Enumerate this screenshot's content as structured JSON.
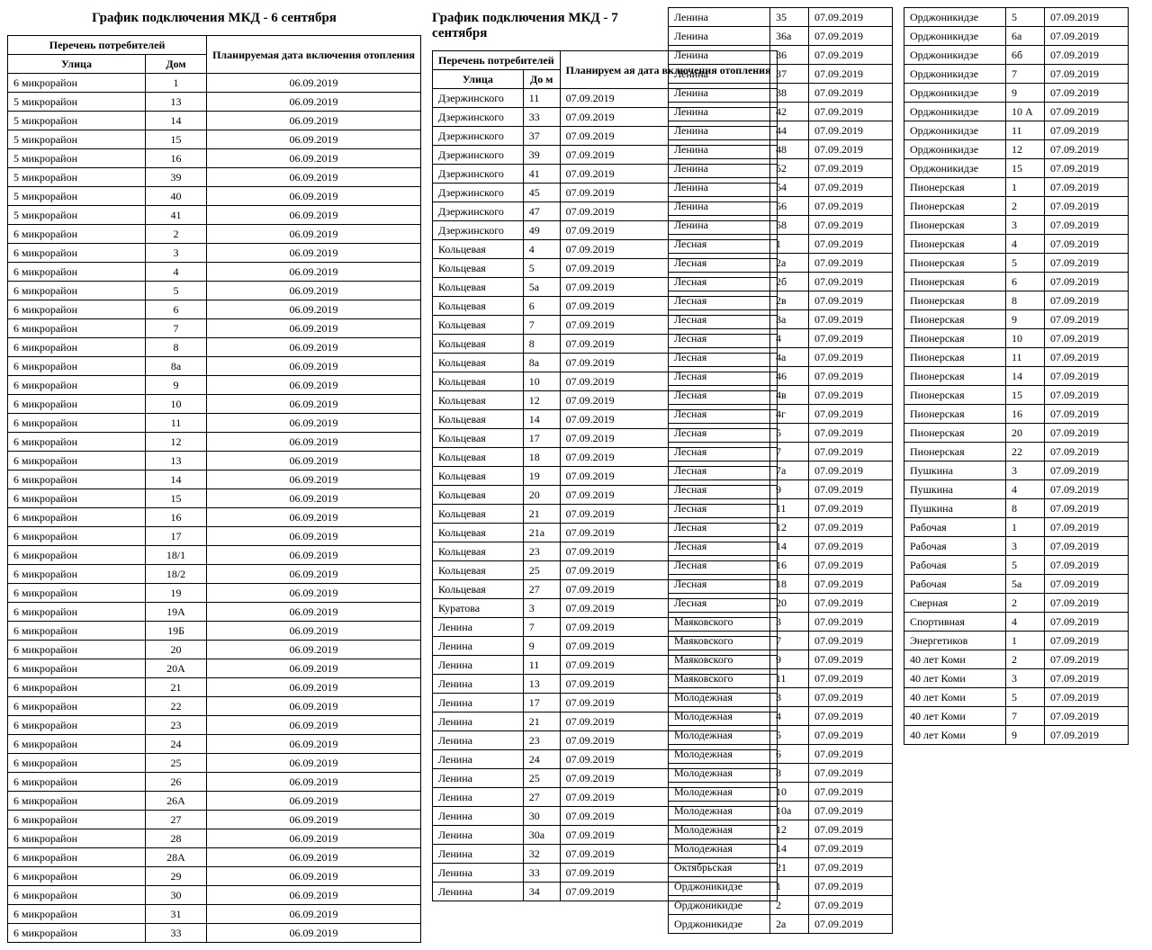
{
  "title1": "График подключения МКД - 6 сентября",
  "title2": "График подключения МКД - 7 сентября",
  "headers1": {
    "group": "Перечень потребителей",
    "street": "Улица",
    "house": "Дом",
    "date": "Планируемая дата включения отопления"
  },
  "headers2": {
    "group": "Перечень потребителей",
    "street": "Улица",
    "house": "До м",
    "date": "Планируем ая дата включения отопления"
  },
  "table1": {
    "rows": [
      [
        "6 микрорайон",
        "1",
        "06.09.2019"
      ],
      [
        "5 микрорайон",
        "13",
        "06.09.2019"
      ],
      [
        "5 микрорайон",
        "14",
        "06.09.2019"
      ],
      [
        "5 микрорайон",
        "15",
        "06.09.2019"
      ],
      [
        "5 микрорайон",
        "16",
        "06.09.2019"
      ],
      [
        "5 микрорайон",
        "39",
        "06.09.2019"
      ],
      [
        "5 микрорайон",
        "40",
        "06.09.2019"
      ],
      [
        "5 микрорайон",
        "41",
        "06.09.2019"
      ],
      [
        "6 микрорайон",
        "2",
        "06.09.2019"
      ],
      [
        "6 микрорайон",
        "3",
        "06.09.2019"
      ],
      [
        "6 микрорайон",
        "4",
        "06.09.2019"
      ],
      [
        "6 микрорайон",
        "5",
        "06.09.2019"
      ],
      [
        "6 микрорайон",
        "6",
        "06.09.2019"
      ],
      [
        "6 микрорайон",
        "7",
        "06.09.2019"
      ],
      [
        "6 микрорайон",
        "8",
        "06.09.2019"
      ],
      [
        "6 микрорайон",
        "8а",
        "06.09.2019"
      ],
      [
        "6 микрорайон",
        "9",
        "06.09.2019"
      ],
      [
        "6 микрорайон",
        "10",
        "06.09.2019"
      ],
      [
        "6 микрорайон",
        "11",
        "06.09.2019"
      ],
      [
        "6 микрорайон",
        "12",
        "06.09.2019"
      ],
      [
        "6 микрорайон",
        "13",
        "06.09.2019"
      ],
      [
        "6 микрорайон",
        "14",
        "06.09.2019"
      ],
      [
        "6 микрорайон",
        "15",
        "06.09.2019"
      ],
      [
        "6 микрорайон",
        "16",
        "06.09.2019"
      ],
      [
        "6 микрорайон",
        "17",
        "06.09.2019"
      ],
      [
        "6 микрорайон",
        "18/1",
        "06.09.2019"
      ],
      [
        "6 микрорайон",
        "18/2",
        "06.09.2019"
      ],
      [
        "6 микрорайон",
        "19",
        "06.09.2019"
      ],
      [
        "6 микрорайон",
        "19А",
        "06.09.2019"
      ],
      [
        "6 микрорайон",
        "19Б",
        "06.09.2019"
      ],
      [
        "6 микрорайон",
        "20",
        "06.09.2019"
      ],
      [
        "6 микрорайон",
        "20А",
        "06.09.2019"
      ],
      [
        "6 микрорайон",
        "21",
        "06.09.2019"
      ],
      [
        "6 микрорайон",
        "22",
        "06.09.2019"
      ],
      [
        "6 микрорайон",
        "23",
        "06.09.2019"
      ],
      [
        "6 микрорайон",
        "24",
        "06.09.2019"
      ],
      [
        "6 микрорайон",
        "25",
        "06.09.2019"
      ],
      [
        "6 микрорайон",
        "26",
        "06.09.2019"
      ],
      [
        "6 микрорайон",
        "26А",
        "06.09.2019"
      ],
      [
        "6 микрорайон",
        "27",
        "06.09.2019"
      ],
      [
        "6 микрорайон",
        "28",
        "06.09.2019"
      ],
      [
        "6 микрорайон",
        "28А",
        "06.09.2019"
      ],
      [
        "6 микрорайон",
        "29",
        "06.09.2019"
      ],
      [
        "6 микрорайон",
        "30",
        "06.09.2019"
      ],
      [
        "6 микрорайон",
        "31",
        "06.09.2019"
      ],
      [
        "6 микрорайон",
        "33",
        "06.09.2019"
      ]
    ]
  },
  "table2": {
    "rows": [
      [
        "Дзержинского",
        "11",
        "07.09.2019"
      ],
      [
        "Дзержинского",
        "33",
        "07.09.2019"
      ],
      [
        "Дзержинского",
        "37",
        "07.09.2019"
      ],
      [
        "Дзержинского",
        "39",
        "07.09.2019"
      ],
      [
        "Дзержинского",
        "41",
        "07.09.2019"
      ],
      [
        "Дзержинского",
        "45",
        "07.09.2019"
      ],
      [
        "Дзержинского",
        "47",
        "07.09.2019"
      ],
      [
        "Дзержинского",
        "49",
        "07.09.2019"
      ],
      [
        "Кольцевая",
        "4",
        "07.09.2019"
      ],
      [
        "Кольцевая",
        "5",
        "07.09.2019"
      ],
      [
        "Кольцевая",
        "5а",
        "07.09.2019"
      ],
      [
        "Кольцевая",
        "6",
        "07.09.2019"
      ],
      [
        "Кольцевая",
        "7",
        "07.09.2019"
      ],
      [
        "Кольцевая",
        "8",
        "07.09.2019"
      ],
      [
        "Кольцевая",
        "8а",
        "07.09.2019"
      ],
      [
        "Кольцевая",
        "10",
        "07.09.2019"
      ],
      [
        "Кольцевая",
        "12",
        "07.09.2019"
      ],
      [
        "Кольцевая",
        "14",
        "07.09.2019"
      ],
      [
        "Кольцевая",
        "17",
        "07.09.2019"
      ],
      [
        "Кольцевая",
        "18",
        "07.09.2019"
      ],
      [
        "Кольцевая",
        "19",
        "07.09.2019"
      ],
      [
        "Кольцевая",
        "20",
        "07.09.2019"
      ],
      [
        "Кольцевая",
        "21",
        "07.09.2019"
      ],
      [
        "Кольцевая",
        "21а",
        "07.09.2019"
      ],
      [
        "Кольцевая",
        "23",
        "07.09.2019"
      ],
      [
        "Кольцевая",
        "25",
        "07.09.2019"
      ],
      [
        "Кольцевая",
        "27",
        "07.09.2019"
      ],
      [
        "Куратова",
        "3",
        "07.09.2019"
      ],
      [
        "Ленина",
        "7",
        "07.09.2019"
      ],
      [
        "Ленина",
        "9",
        "07.09.2019"
      ],
      [
        "Ленина",
        "11",
        "07.09.2019"
      ],
      [
        "Ленина",
        "13",
        "07.09.2019"
      ],
      [
        "Ленина",
        "17",
        "07.09.2019"
      ],
      [
        "Ленина",
        "21",
        "07.09.2019"
      ],
      [
        "Ленина",
        "23",
        "07.09.2019"
      ],
      [
        "Ленина",
        "24",
        "07.09.2019"
      ],
      [
        "Ленина",
        "25",
        "07.09.2019"
      ],
      [
        "Ленина",
        "27",
        "07.09.2019"
      ],
      [
        "Ленина",
        "30",
        "07.09.2019"
      ],
      [
        "Ленина",
        "30а",
        "07.09.2019"
      ],
      [
        "Ленина",
        "32",
        "07.09.2019"
      ],
      [
        "Ленина",
        "33",
        "07.09.2019"
      ],
      [
        "Ленина",
        "34",
        "07.09.2019"
      ]
    ]
  },
  "table3": {
    "rows": [
      [
        "Ленина",
        "35",
        "07.09.2019"
      ],
      [
        "Ленина",
        "36а",
        "07.09.2019"
      ],
      [
        "Ленина",
        "36",
        "07.09.2019"
      ],
      [
        "Ленина",
        "37",
        "07.09.2019"
      ],
      [
        "Ленина",
        "38",
        "07.09.2019"
      ],
      [
        "Ленина",
        "42",
        "07.09.2019"
      ],
      [
        "Ленина",
        "44",
        "07.09.2019"
      ],
      [
        "Ленина",
        "48",
        "07.09.2019"
      ],
      [
        "Ленина",
        "52",
        "07.09.2019"
      ],
      [
        "Ленина",
        "54",
        "07.09.2019"
      ],
      [
        "Ленина",
        "56",
        "07.09.2019"
      ],
      [
        "Ленина",
        "58",
        "07.09.2019"
      ],
      [
        "Лесная",
        "1",
        "07.09.2019"
      ],
      [
        "Лесная",
        "2а",
        "07.09.2019"
      ],
      [
        "Лесная",
        "2б",
        "07.09.2019"
      ],
      [
        "Лесная",
        "2в",
        "07.09.2019"
      ],
      [
        "Лесная",
        "3а",
        "07.09.2019"
      ],
      [
        "Лесная",
        "4",
        "07.09.2019"
      ],
      [
        "Лесная",
        "4а",
        "07.09.2019"
      ],
      [
        "Лесная",
        "46",
        "07.09.2019"
      ],
      [
        "Лесная",
        "4в",
        "07.09.2019"
      ],
      [
        "Лесная",
        "4г",
        "07.09.2019"
      ],
      [
        "Лесная",
        "5",
        "07.09.2019"
      ],
      [
        "Лесная",
        "7",
        "07.09.2019"
      ],
      [
        "Лесная",
        "7а",
        "07.09.2019"
      ],
      [
        "Лесная",
        "9",
        "07.09.2019"
      ],
      [
        "Лесная",
        "11",
        "07.09.2019"
      ],
      [
        "Лесная",
        "12",
        "07.09.2019"
      ],
      [
        "Лесная",
        "14",
        "07.09.2019"
      ],
      [
        "Лесная",
        "16",
        "07.09.2019"
      ],
      [
        "Лесная",
        "18",
        "07.09.2019"
      ],
      [
        "Лесная",
        "20",
        "07.09.2019"
      ],
      [
        "Маяковского",
        "3",
        "07.09.2019"
      ],
      [
        "Маяковского",
        "7",
        "07.09.2019"
      ],
      [
        "Маяковского",
        "9",
        "07.09.2019"
      ],
      [
        "Маяковского",
        "11",
        "07.09.2019"
      ],
      [
        "Молодежная",
        "3",
        "07.09.2019"
      ],
      [
        "Молодежная",
        "4",
        "07.09.2019"
      ],
      [
        "Молодежная",
        "5",
        "07.09.2019"
      ],
      [
        "Молодежная",
        "6",
        "07.09.2019"
      ],
      [
        "Молодежная",
        "8",
        "07.09.2019"
      ],
      [
        "Молодежная",
        "10",
        "07.09.2019"
      ],
      [
        "Молодежная",
        "10а",
        "07.09.2019"
      ],
      [
        "Молодежная",
        "12",
        "07.09.2019"
      ],
      [
        "Молодежная",
        "14",
        "07.09.2019"
      ],
      [
        "Октябрьская",
        "21",
        "07.09.2019"
      ],
      [
        "Орджоникидзе",
        "1",
        "07.09.2019"
      ],
      [
        "Орджоникидзе",
        "2",
        "07.09.2019"
      ],
      [
        "Орджоникидзе",
        "2а",
        "07.09.2019"
      ]
    ]
  },
  "table4": {
    "rows": [
      [
        "Орджоникидзе",
        "5",
        "07.09.2019"
      ],
      [
        "Орджоникидзе",
        "6а",
        "07.09.2019"
      ],
      [
        "Орджоникидзе",
        "6б",
        "07.09.2019"
      ],
      [
        "Орджоникидзе",
        "7",
        "07.09.2019"
      ],
      [
        "Орджоникидзе",
        "9",
        "07.09.2019"
      ],
      [
        "Орджоникидзе",
        "10 А",
        "07.09.2019"
      ],
      [
        "Орджоникидзе",
        "11",
        "07.09.2019"
      ],
      [
        "Орджоникидзе",
        "12",
        "07.09.2019"
      ],
      [
        "Орджоникидзе",
        "15",
        "07.09.2019"
      ],
      [
        "Пионерская",
        "1",
        "07.09.2019"
      ],
      [
        "Пионерская",
        "2",
        "07.09.2019"
      ],
      [
        "Пионерская",
        "3",
        "07.09.2019"
      ],
      [
        "Пионерская",
        "4",
        "07.09.2019"
      ],
      [
        "Пионерская",
        "5",
        "07.09.2019"
      ],
      [
        "Пионерская",
        "6",
        "07.09.2019"
      ],
      [
        "Пионерская",
        "8",
        "07.09.2019"
      ],
      [
        "Пионерская",
        "9",
        "07.09.2019"
      ],
      [
        "Пионерская",
        "10",
        "07.09.2019"
      ],
      [
        "Пионерская",
        "11",
        "07.09.2019"
      ],
      [
        "Пионерская",
        "14",
        "07.09.2019"
      ],
      [
        "Пионерская",
        "15",
        "07.09.2019"
      ],
      [
        "Пионерская",
        "16",
        "07.09.2019"
      ],
      [
        "Пионерская",
        "20",
        "07.09.2019"
      ],
      [
        "Пионерская",
        "22",
        "07.09.2019"
      ],
      [
        "Пушкина",
        "3",
        "07.09.2019"
      ],
      [
        "Пушкина",
        "4",
        "07.09.2019"
      ],
      [
        "Пушкина",
        "8",
        "07.09.2019"
      ],
      [
        "Рабочая",
        "1",
        "07.09.2019"
      ],
      [
        "Рабочая",
        "3",
        "07.09.2019"
      ],
      [
        "Рабочая",
        "5",
        "07.09.2019"
      ],
      [
        "Рабочая",
        "5а",
        "07.09.2019"
      ],
      [
        "Сверная",
        "2",
        "07.09.2019"
      ],
      [
        "Спортивная",
        "4",
        "07.09.2019"
      ],
      [
        "Энергетиков",
        "1",
        "07.09.2019"
      ],
      [
        "40 лет Коми",
        "2",
        "07.09.2019"
      ],
      [
        "40 лет Коми",
        "3",
        "07.09.2019"
      ],
      [
        "40 лет Коми",
        "5",
        "07.09.2019"
      ],
      [
        "40 лет Коми",
        "7",
        "07.09.2019"
      ],
      [
        "40 лет Коми",
        "9",
        "07.09.2019"
      ]
    ]
  }
}
